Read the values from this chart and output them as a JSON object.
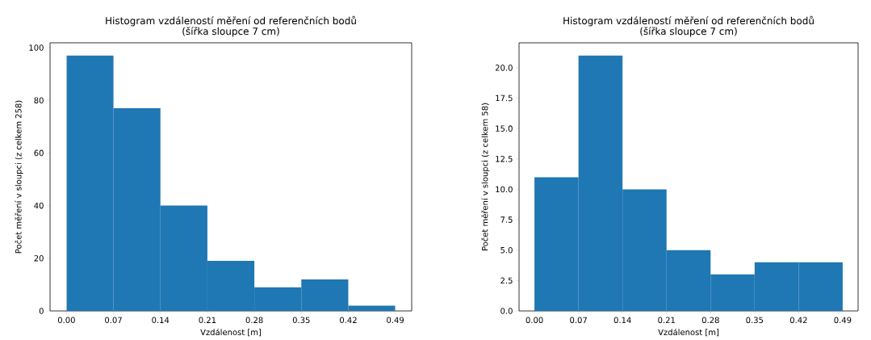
{
  "chart_data": [
    {
      "type": "histogram",
      "title": "Histogram vzdáleností měření od referenčních bodů",
      "subtitle": "(šířka sloupce 7 cm)",
      "xlabel": "Vzdálenost [m]",
      "ylabel": "Počet měření v sloupci (z celkem 258)",
      "color": "#1f77b4",
      "bins": [
        0,
        0.07,
        0.14,
        0.21,
        0.28,
        0.35,
        0.42,
        0.49
      ],
      "values": [
        97,
        77,
        40,
        19,
        9,
        12,
        2
      ],
      "xlim": [
        -0.0245,
        0.5145
      ],
      "ylim": [
        0,
        101.85
      ],
      "xticks": [
        {
          "value": 0,
          "label": "0.00"
        },
        {
          "value": 0.07,
          "label": "0.07"
        },
        {
          "value": 0.14,
          "label": "0.14"
        },
        {
          "value": 0.21,
          "label": "0.21"
        },
        {
          "value": 0.28,
          "label": "0.28"
        },
        {
          "value": 0.35,
          "label": "0.35"
        },
        {
          "value": 0.42,
          "label": "0.42"
        },
        {
          "value": 0.49,
          "label": "0.49"
        }
      ],
      "yticks": [
        0,
        20,
        40,
        60,
        80,
        100
      ]
    },
    {
      "type": "histogram",
      "title": "Histogram vzdáleností měření od referenčních bodů",
      "subtitle": "(šířka sloupce 7 cm)",
      "xlabel": "Vzdálenost [m]",
      "ylabel": "Počet měření v sloupci (z celkem 58)",
      "color": "#1f77b4",
      "bins": [
        0,
        0.07,
        0.14,
        0.21,
        0.28,
        0.35,
        0.42,
        0.49
      ],
      "values": [
        11,
        21,
        10,
        5,
        3,
        4,
        4
      ],
      "xlim": [
        -0.0245,
        0.5145
      ],
      "ylim": [
        0,
        22.05
      ],
      "xticks": [
        {
          "value": 0,
          "label": "0.00"
        },
        {
          "value": 0.07,
          "label": "0.07"
        },
        {
          "value": 0.14,
          "label": "0.14"
        },
        {
          "value": 0.21,
          "label": "0.21"
        },
        {
          "value": 0.28,
          "label": "0.28"
        },
        {
          "value": 0.35,
          "label": "0.35"
        },
        {
          "value": 0.42,
          "label": "0.42"
        },
        {
          "value": 0.49,
          "label": "0.49"
        }
      ],
      "yticks": [
        {
          "value": 0,
          "label": "0.0"
        },
        {
          "value": 2.5,
          "label": "2.5"
        },
        {
          "value": 5,
          "label": "5.0"
        },
        {
          "value": 7.5,
          "label": "7.5"
        },
        {
          "value": 10,
          "label": "10.0"
        },
        {
          "value": 12.5,
          "label": "12.5"
        },
        {
          "value": 15,
          "label": "15.0"
        },
        {
          "value": 17.5,
          "label": "17.5"
        },
        {
          "value": 20,
          "label": "20.0"
        }
      ]
    }
  ]
}
